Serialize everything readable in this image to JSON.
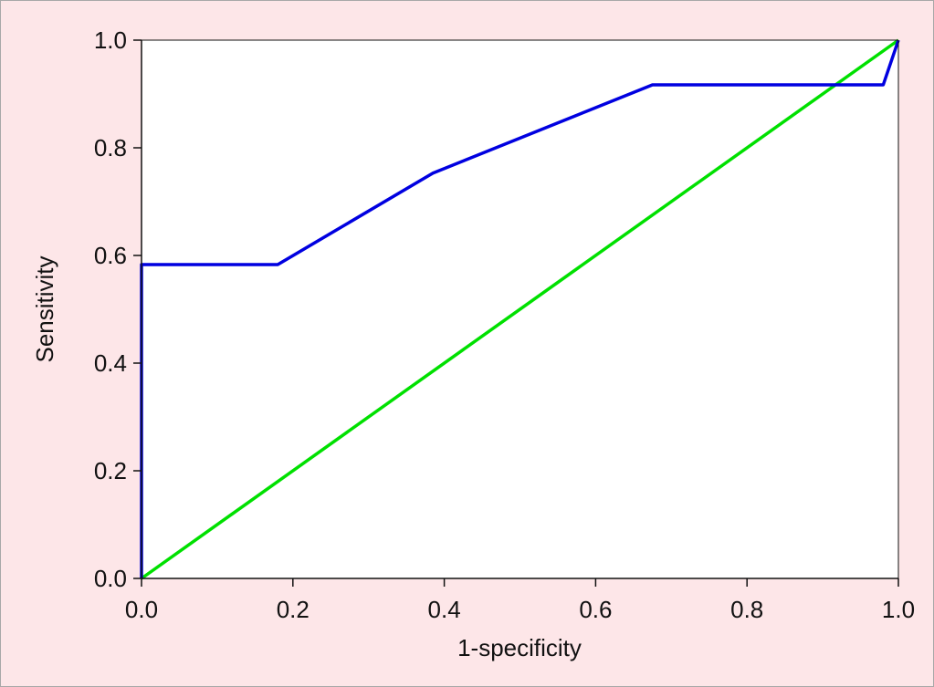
{
  "chart_data": {
    "type": "line",
    "title": "",
    "xlabel": "1-specificity",
    "ylabel": "Sensitivity",
    "xlim": [
      0,
      1
    ],
    "ylim": [
      0,
      1
    ],
    "x_ticks": [
      "0.0",
      "0.2",
      "0.4",
      "0.6",
      "0.8",
      "1.0"
    ],
    "y_ticks": [
      "0.0",
      "0.2",
      "0.4",
      "0.6",
      "0.8",
      "1.0"
    ],
    "grid": false,
    "legend": "none",
    "series": [
      {
        "color": "#0000e0",
        "x": [
          0.0,
          0.0,
          0.18,
          0.385,
          0.675,
          0.98,
          1.0
        ],
        "y": [
          0.0,
          0.583,
          0.583,
          0.753,
          0.917,
          0.917,
          1.0
        ]
      },
      {
        "color": "#00e000",
        "x": [
          0.0,
          1.0
        ],
        "y": [
          0.0,
          1.0
        ]
      }
    ]
  }
}
